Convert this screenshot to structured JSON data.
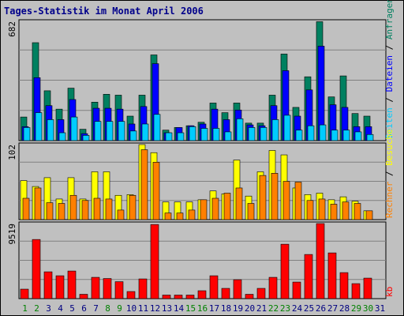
{
  "chart_data": {
    "type": "bar",
    "title": "Tages-Statistik im Monat April 2006",
    "categories": [
      "1",
      "2",
      "3",
      "4",
      "5",
      "6",
      "7",
      "8",
      "9",
      "10",
      "11",
      "12",
      "13",
      "14",
      "15",
      "16",
      "17",
      "18",
      "19",
      "20",
      "21",
      "22",
      "23",
      "24",
      "25",
      "26",
      "27",
      "28",
      "29",
      "30",
      "31"
    ],
    "weekend_days": [
      "1",
      "2",
      "8",
      "9",
      "15",
      "16",
      "22",
      "23",
      "29",
      "30"
    ],
    "colors": {
      "weekday_label": "#000080",
      "weekend_label": "#008000",
      "anfragen": "#008060",
      "dateien": "#0000ff",
      "seiten": "#00ccff",
      "besuche": "#ffff00",
      "rechner": "#ff8000",
      "kb": "#ff0000"
    },
    "panels": [
      {
        "ymax_label": "682",
        "ylim": [
          0,
          682
        ],
        "side_labels": [
          "Anfragen",
          "Dateien",
          "Seiten"
        ],
        "series": [
          {
            "name": "Anfragen",
            "color": "anfragen",
            "values": [
              135,
              560,
              285,
              180,
              300,
              65,
              220,
              265,
              260,
              140,
              260,
              490,
              60,
              75,
              85,
              105,
              215,
              160,
              215,
              100,
              100,
              260,
              495,
              190,
              365,
              680,
              250,
              370,
              155,
              140,
              0
            ]
          },
          {
            "name": "Dateien",
            "color": "dateien",
            "values": [
              80,
              360,
              200,
              120,
              235,
              40,
              185,
              185,
              180,
              95,
              195,
              440,
              45,
              75,
              85,
              95,
              180,
              120,
              175,
              90,
              85,
              200,
              400,
              140,
              290,
              540,
              205,
              190,
              80,
              80,
              0
            ]
          },
          {
            "name": "Seiten",
            "color": "seiten",
            "values": [
              75,
              160,
              120,
              45,
              135,
              30,
              110,
              110,
              110,
              55,
              95,
              150,
              45,
              45,
              80,
              70,
              70,
              50,
              125,
              75,
              75,
              120,
              145,
              60,
              85,
              90,
              60,
              60,
              50,
              35,
              0
            ]
          }
        ]
      },
      {
        "ymax_label": "102",
        "ylim": [
          0,
          102
        ],
        "side_labels": [
          "Besuche",
          "Rechner"
        ],
        "series": [
          {
            "name": "Besuche",
            "color": "besuche",
            "values": [
              53,
              45,
              57,
              28,
              57,
              28,
              65,
              65,
              33,
              34,
              102,
              91,
              24,
              24,
              24,
              27,
              39,
              35,
              81,
              32,
              65,
              94,
              88,
              43,
              34,
              36,
              27,
              31,
              25,
              12,
              0
            ]
          },
          {
            "name": "Rechner",
            "color": "rechner",
            "values": [
              29,
              43,
              23,
              22,
              33,
              26,
              29,
              28,
              13,
              33,
              95,
              78,
              9,
              9,
              13,
              27,
              29,
              36,
              43,
              22,
              60,
              63,
              52,
              51,
              26,
              28,
              21,
              24,
              22,
              12,
              0
            ]
          }
        ]
      },
      {
        "ymax_label": "9519",
        "ylim": [
          0,
          9519
        ],
        "side_labels": [
          "kb"
        ],
        "series": [
          {
            "name": "kb",
            "color": "kb",
            "values": [
              1200,
              7500,
              3400,
              2900,
              3500,
              550,
              2700,
              2550,
              2150,
              900,
              2500,
              9400,
              450,
              450,
              450,
              1000,
              2900,
              1300,
              2400,
              550,
              1300,
              2700,
              6900,
              2100,
              5600,
              9519,
              5800,
              3300,
              1900,
              2600,
              0
            ]
          }
        ]
      }
    ]
  }
}
